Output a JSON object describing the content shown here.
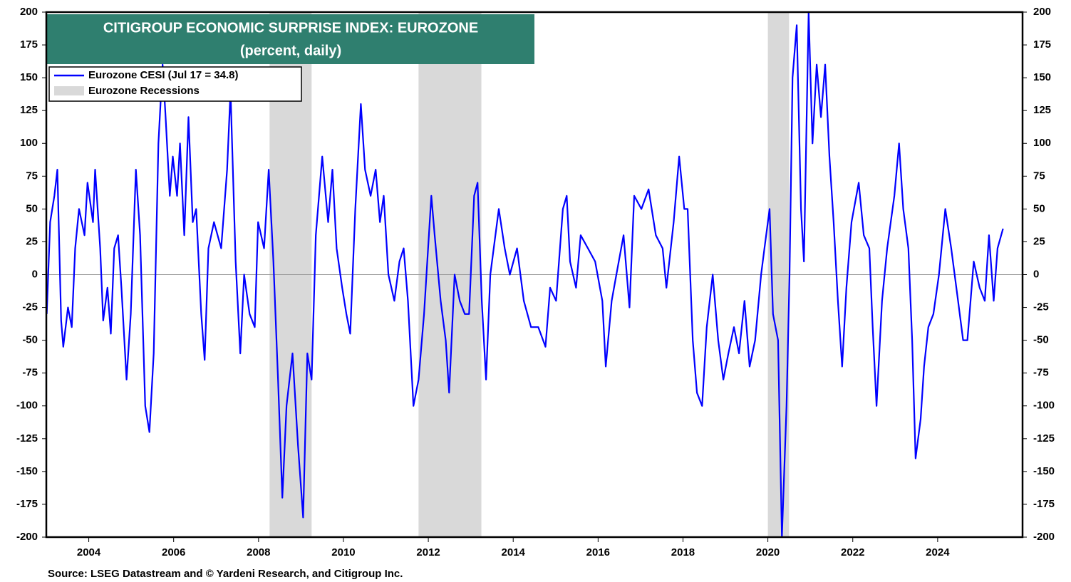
{
  "chart_data": {
    "type": "line",
    "title": "CITIGROUP ECONOMIC SURPRISE INDEX: EUROZONE",
    "subtitle": "(percent, daily)",
    "source": "Source: LSEG Datastream and © Yardeni Research, and Citigroup Inc.",
    "xlim": [
      2003,
      2026
    ],
    "xticks": [
      2004,
      2006,
      2008,
      2010,
      2012,
      2014,
      2016,
      2018,
      2020,
      2022,
      2024
    ],
    "ylim": [
      -200,
      200
    ],
    "yticks": [
      -200,
      -175,
      -150,
      -125,
      -100,
      -75,
      -50,
      -25,
      0,
      25,
      50,
      75,
      100,
      125,
      150,
      175,
      200
    ],
    "y2lim": [
      -200,
      200
    ],
    "y2ticks": [
      -200,
      -175,
      -150,
      -125,
      -100,
      -75,
      -50,
      -25,
      0,
      25,
      50,
      75,
      100,
      125,
      150,
      175,
      200
    ],
    "recession_name": "Eurozone Recessions",
    "recession_color": "#d9d9d9",
    "recessions": [
      [
        2008.26,
        2009.25
      ],
      [
        2011.77,
        2013.25
      ],
      [
        2020.0,
        2020.5
      ]
    ],
    "x": [
      2003.01,
      2003.09,
      2003.19,
      2003.26,
      2003.35,
      2003.4,
      2003.51,
      2003.6,
      2003.68,
      2003.77,
      2003.9,
      2003.97,
      2004.1,
      2004.15,
      2004.27,
      2004.34,
      2004.44,
      2004.52,
      2004.6,
      2004.69,
      2004.77,
      2004.89,
      2004.99,
      2005.11,
      2005.21,
      2005.33,
      2005.43,
      2005.53,
      2005.64,
      2005.74,
      2005.81,
      2005.91,
      2005.98,
      2006.08,
      2006.15,
      2006.25,
      2006.35,
      2006.45,
      2006.53,
      2006.65,
      2006.73,
      2006.82,
      2006.95,
      2007.12,
      2007.26,
      2007.34,
      2007.46,
      2007.57,
      2007.66,
      2007.79,
      2007.91,
      2007.99,
      2008.13,
      2008.24,
      2008.35,
      2008.46,
      2008.56,
      2008.66,
      2008.8,
      2008.93,
      2009.05,
      2009.15,
      2009.25,
      2009.35,
      2009.5,
      2009.64,
      2009.74,
      2009.84,
      2009.97,
      2010.07,
      2010.16,
      2010.28,
      2010.41,
      2010.51,
      2010.64,
      2010.76,
      2010.86,
      2010.95,
      2011.06,
      2011.2,
      2011.32,
      2011.42,
      2011.52,
      2011.65,
      2011.77,
      2011.9,
      2012.07,
      2012.15,
      2012.29,
      2012.41,
      2012.49,
      2012.62,
      2012.74,
      2012.86,
      2012.96,
      2013.08,
      2013.16,
      2013.26,
      2013.36,
      2013.46,
      2013.66,
      2013.8,
      2013.92,
      2014.09,
      2014.25,
      2014.42,
      2014.59,
      2014.76,
      2014.87,
      2015.01,
      2015.17,
      2015.26,
      2015.34,
      2015.48,
      2015.59,
      2015.76,
      2015.93,
      2016.1,
      2016.18,
      2016.32,
      2016.43,
      2016.6,
      2016.74,
      2016.85,
      2017.02,
      2017.19,
      2017.36,
      2017.52,
      2017.61,
      2017.78,
      2017.91,
      2018.03,
      2018.11,
      2018.23,
      2018.33,
      2018.45,
      2018.56,
      2018.7,
      2018.83,
      2018.95,
      2019.07,
      2019.2,
      2019.32,
      2019.45,
      2019.57,
      2019.7,
      2019.84,
      2019.92,
      2020.04,
      2020.12,
      2020.24,
      2020.33,
      2020.44,
      2020.51,
      2020.58,
      2020.68,
      2020.78,
      2020.85,
      2020.96,
      2021.05,
      2021.15,
      2021.25,
      2021.35,
      2021.45,
      2021.55,
      2021.65,
      2021.75,
      2021.85,
      2021.97,
      2022.14,
      2022.26,
      2022.39,
      2022.47,
      2022.56,
      2022.69,
      2022.81,
      2022.98,
      2023.09,
      2023.19,
      2023.31,
      2023.4,
      2023.48,
      2023.6,
      2023.68,
      2023.78,
      2023.9,
      2024.03,
      2024.18,
      2024.32,
      2024.48,
      2024.6,
      2024.7,
      2024.85,
      2024.99,
      2025.11,
      2025.21,
      2025.32,
      2025.41,
      2025.54
    ],
    "series": [
      {
        "name": "Eurozone CESI (Jul 17 = 34.8)",
        "color": "#0000ff",
        "values": [
          -30,
          40,
          60,
          80,
          -35,
          -55,
          -25,
          -40,
          20,
          50,
          30,
          70,
          40,
          80,
          20,
          -35,
          -10,
          -45,
          20,
          30,
          -10,
          -80,
          -30,
          80,
          30,
          -100,
          -120,
          -60,
          100,
          160,
          120,
          60,
          90,
          60,
          100,
          30,
          120,
          40,
          50,
          -30,
          -65,
          20,
          40,
          20,
          80,
          140,
          10,
          -60,
          0,
          -30,
          -40,
          40,
          20,
          80,
          10,
          -80,
          -170,
          -100,
          -60,
          -130,
          -185,
          -60,
          -80,
          30,
          90,
          40,
          80,
          20,
          -10,
          -30,
          -45,
          50,
          130,
          80,
          60,
          80,
          40,
          60,
          0,
          -20,
          10,
          20,
          -20,
          -100,
          -80,
          -30,
          60,
          30,
          -20,
          -50,
          -90,
          0,
          -20,
          -30,
          -30,
          60,
          70,
          -20,
          -80,
          0,
          50,
          20,
          0,
          20,
          -20,
          -40,
          -40,
          -55,
          -10,
          -20,
          50,
          60,
          10,
          -10,
          30,
          20,
          10,
          -20,
          -70,
          -20,
          0,
          30,
          -25,
          60,
          50,
          65,
          30,
          20,
          -10,
          40,
          90,
          50,
          50,
          -50,
          -90,
          -100,
          -40,
          0,
          -50,
          -80,
          -60,
          -40,
          -60,
          -20,
          -70,
          -50,
          0,
          20,
          50,
          -30,
          -50,
          -200,
          -100,
          0,
          150,
          190,
          50,
          10,
          200,
          100,
          160,
          120,
          160,
          90,
          40,
          -20,
          -70,
          -10,
          40,
          70,
          30,
          20,
          -40,
          -100,
          -20,
          20,
          60,
          100,
          50,
          20,
          -50,
          -140,
          -110,
          -70,
          -40,
          -30,
          0,
          50,
          20,
          -20,
          -50,
          -50,
          10,
          -10,
          -20,
          30,
          -20,
          20,
          35
        ]
      }
    ]
  }
}
